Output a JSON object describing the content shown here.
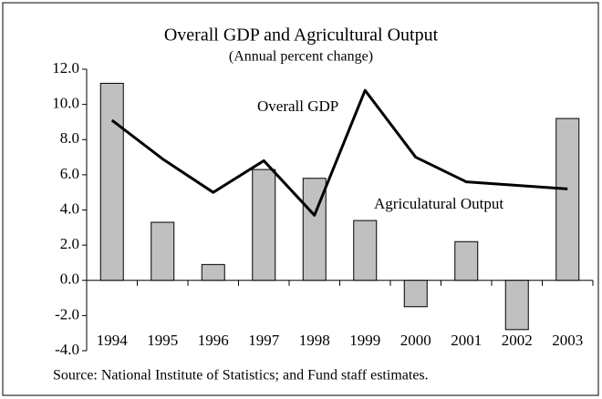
{
  "chart_data": {
    "type": "bar-line",
    "title": "Overall GDP and Agricultural Output",
    "subtitle": "(Annual percent change)",
    "source": "Source: National Institute of Statistics; and Fund staff estimates.",
    "categories": [
      "1994",
      "1995",
      "1996",
      "1997",
      "1998",
      "1999",
      "2000",
      "2001",
      "2002",
      "2003"
    ],
    "series": [
      {
        "name": "Overall GDP",
        "type": "line",
        "color": "#000000",
        "values": [
          9.1,
          6.9,
          5.0,
          6.8,
          3.7,
          10.8,
          7.0,
          5.6,
          5.4,
          5.2
        ]
      },
      {
        "name": "Agriculatural Output",
        "type": "bar",
        "color": "#c0c0c0",
        "values": [
          11.2,
          3.3,
          0.9,
          6.3,
          5.8,
          3.4,
          -1.5,
          2.2,
          -2.8,
          9.2
        ]
      }
    ],
    "ylim": [
      -4,
      12
    ],
    "yticks": [
      {
        "value": -4,
        "label": "-4.0"
      },
      {
        "value": -2,
        "label": "-2.0"
      },
      {
        "value": 0,
        "label": "0.0"
      },
      {
        "value": 2,
        "label": "2.0"
      },
      {
        "value": 4,
        "label": "4.0"
      },
      {
        "value": 6,
        "label": "6.0"
      },
      {
        "value": 8,
        "label": "8.0"
      },
      {
        "value": 10,
        "label": "10.0"
      },
      {
        "value": 12,
        "label": "12.0"
      }
    ],
    "grid": false
  }
}
